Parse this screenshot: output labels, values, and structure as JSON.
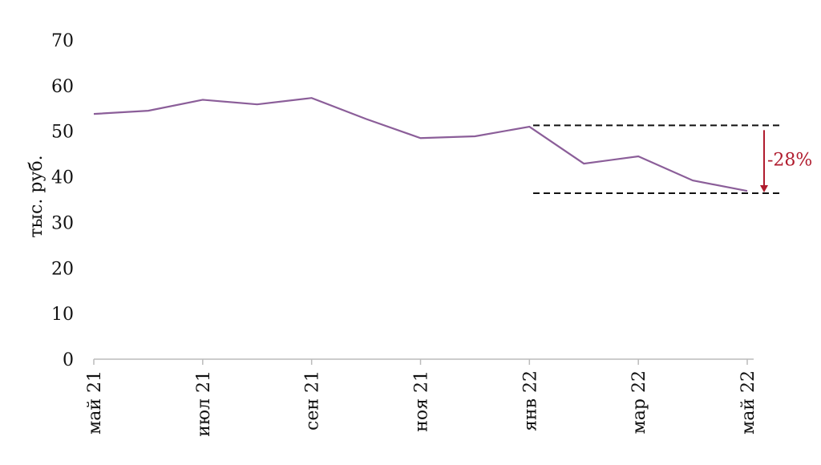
{
  "chart_data": {
    "type": "line",
    "title": "",
    "xlabel": "",
    "ylabel": "тыс. руб.",
    "ylim": [
      0,
      70
    ],
    "yticks": [
      0,
      10,
      20,
      30,
      40,
      50,
      60,
      70
    ],
    "grid": false,
    "x": [
      "май 21",
      "июн 21",
      "июл 21",
      "авг 21",
      "сен 21",
      "окт 21",
      "ноя 21",
      "дек 21",
      "янв 22",
      "фев 22",
      "мар 22",
      "апр 22",
      "май 22"
    ],
    "xtick_labels": [
      "май 21",
      "июл 21",
      "сен 21",
      "ноя 21",
      "янв 22",
      "мар 22",
      "май 22"
    ],
    "series": [
      {
        "name": "value",
        "color": "#8b5e99",
        "values": [
          53.8,
          54.5,
          56.9,
          55.9,
          57.3,
          52.7,
          48.5,
          48.9,
          51.0,
          42.9,
          44.5,
          39.2,
          36.9
        ]
      }
    ],
    "annotation": {
      "label": "-28%",
      "from_value": 51.3,
      "to_value": 36.4,
      "color": "#b01c2e"
    }
  }
}
